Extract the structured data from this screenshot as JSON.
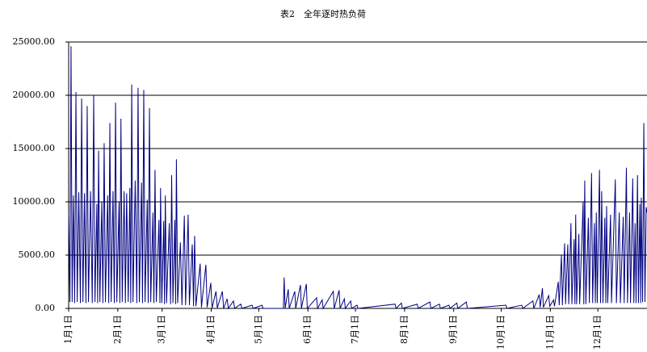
{
  "chart_data": {
    "type": "line",
    "title": "表2　全年逐时热负荷",
    "color": "#000080",
    "xlim": [
      0,
      365
    ],
    "ylim": [
      0,
      25000
    ],
    "grid": true,
    "xticks": [
      {
        "value": 0,
        "label": "1月1日"
      },
      {
        "value": 31,
        "label": "2月1日"
      },
      {
        "value": 59,
        "label": "3月1日"
      },
      {
        "value": 90,
        "label": "4月1日"
      },
      {
        "value": 120,
        "label": "5月1日"
      },
      {
        "value": 151,
        "label": "6月1日"
      },
      {
        "value": 181,
        "label": "7月1日"
      },
      {
        "value": 212,
        "label": "8月1日"
      },
      {
        "value": 243,
        "label": "9月1日"
      },
      {
        "value": 273,
        "label": "10月1日"
      },
      {
        "value": 304,
        "label": "11月1日"
      },
      {
        "value": 334,
        "label": "12月1日"
      }
    ],
    "yticks": [
      {
        "value": 0,
        "label": "0.00"
      },
      {
        "value": 5000,
        "label": "5000.00"
      },
      {
        "value": 10000,
        "label": "10000.00"
      },
      {
        "value": 15000,
        "label": "15000.00"
      },
      {
        "value": 20000,
        "label": "20000.00"
      },
      {
        "value": 25000,
        "label": "25000.00"
      }
    ],
    "x": [
      0,
      0.8,
      1.5,
      2.2,
      3.0,
      3.8,
      4.6,
      5.4,
      6.4,
      7.4,
      8.2,
      9.0,
      10.0,
      10.9,
      11.7,
      12.5,
      13.8,
      14.9,
      15.8,
      16.6,
      17.8,
      18.3,
      18.9,
      19.7,
      20.9,
      21.6,
      22.4,
      23.2,
      24.6,
      25.3,
      26,
      26.8,
      28.0,
      28.8,
      29.6,
      30.4,
      31.8,
      32.3,
      33,
      33.8,
      35,
      35.8,
      36.6,
      37.6,
      38.6,
      39.2,
      39.8,
      40.6,
      42,
      43,
      43.8,
      44.6,
      46,
      46.6,
      47.4,
      48.2,
      49.6,
      50.2,
      51,
      51.8,
      53.2,
      53.8,
      54.5,
      55.3,
      57,
      57.6,
      58,
      58.8,
      60,
      60.5,
      61,
      61.8,
      63.5,
      64.3,
      65,
      65.8,
      67,
      67.5,
      68,
      68.8,
      70.5,
      71.5,
      73,
      73.8,
      75.4,
      76.2,
      78,
      78.8,
      79.5,
      80.3,
      83,
      83.8,
      86.6,
      87.4,
      89.7,
      90.5,
      93,
      93.8,
      97,
      97.8,
      100,
      100.8,
      104,
      104.8,
      108.6,
      109.4,
      115.7,
      116.5,
      122,
      122.8,
      135.5,
      136,
      136.6,
      138.6,
      139.2,
      142.7,
      143.3,
      146.3,
      146.9,
      150,
      150.6,
      156.5,
      157.1,
      160,
      160.6,
      167,
      167.6,
      170.7,
      171.3,
      174,
      174.6,
      178,
      178.6,
      182,
      182.6,
      206,
      206.6,
      210,
      210.6,
      220,
      220.6,
      228,
      228.6,
      234,
      234.6,
      240,
      240.6,
      245,
      245.6,
      251,
      251.6,
      276,
      276.6,
      286,
      286.6,
      293,
      293.6,
      297,
      297.6,
      299,
      299.6,
      303,
      303.6,
      306,
      306.6,
      309,
      309.6,
      311,
      311.6,
      313,
      313.6,
      315,
      315.6,
      317,
      317.6,
      319,
      319.5,
      320,
      320.6,
      322,
      322.5,
      324.7,
      325.1,
      325.7,
      326.4,
      328,
      328.6,
      330,
      330.7,
      331.8,
      332.4,
      333,
      333.6,
      335,
      335.7,
      336.4,
      337.2,
      338.4,
      339,
      339.5,
      340.2,
      342,
      342.6,
      345,
      345.7,
      347.5,
      348.2,
      350,
      350.6,
      352,
      352.7,
      354,
      354.6,
      356,
      356.7,
      357.5,
      358.1,
      359,
      359.6,
      360.5,
      361,
      361.4,
      362.2,
      363,
      363.7,
      364.5,
      365
    ],
    "values": [
      9000,
      600,
      24600,
      600,
      10600,
      500,
      20300,
      600,
      10900,
      500,
      19700,
      600,
      10800,
      500,
      19000,
      600,
      11000,
      500,
      20000,
      600,
      9800,
      500,
      14800,
      600,
      10000,
      500,
      15500,
      600,
      10600,
      500,
      17400,
      600,
      11000,
      500,
      19300,
      600,
      10000,
      500,
      17800,
      600,
      11000,
      500,
      10800,
      600,
      11300,
      500,
      21000,
      600,
      12000,
      500,
      20700,
      600,
      11800,
      500,
      20500,
      600,
      10200,
      500,
      18800,
      600,
      9000,
      500,
      13000,
      600,
      8300,
      500,
      11300,
      500,
      8200,
      400,
      10600,
      500,
      8000,
      400,
      12500,
      500,
      8300,
      400,
      14000,
      500,
      6200,
      300,
      8700,
      300,
      8800,
      300,
      6000,
      200,
      6800,
      200,
      4200,
      100,
      4100,
      100,
      2400,
      50,
      1600,
      50,
      1600,
      0,
      900,
      0,
      700,
      0,
      400,
      0,
      300,
      0,
      300,
      0,
      0,
      2900,
      0,
      1800,
      0,
      1600,
      0,
      2200,
      0,
      2300,
      0,
      1000,
      0,
      800,
      0,
      1600,
      0,
      1700,
      0,
      900,
      0,
      700,
      0,
      300,
      0,
      400,
      0,
      500,
      0,
      400,
      0,
      600,
      0,
      400,
      0,
      300,
      0,
      500,
      0,
      600,
      0,
      300,
      0,
      300,
      0,
      700,
      0,
      1300,
      100,
      1900,
      100,
      1200,
      200,
      800,
      200,
      2500,
      300,
      5000,
      300,
      6100,
      400,
      6000,
      400,
      8000,
      400,
      6500,
      400,
      8800,
      400,
      7000,
      400,
      10000,
      400,
      12000,
      400,
      8500,
      500,
      12700,
      500,
      8000,
      500,
      9000,
      500,
      13000,
      500,
      11000,
      500,
      8500,
      500,
      9600,
      500,
      8800,
      500,
      12100,
      500,
      9000,
      500,
      8600,
      500,
      13200,
      500,
      9000,
      500,
      12200,
      500,
      8000,
      500,
      12500,
      500,
      9800,
      500,
      10400,
      600,
      17400,
      600,
      9500,
      9000
    ]
  }
}
